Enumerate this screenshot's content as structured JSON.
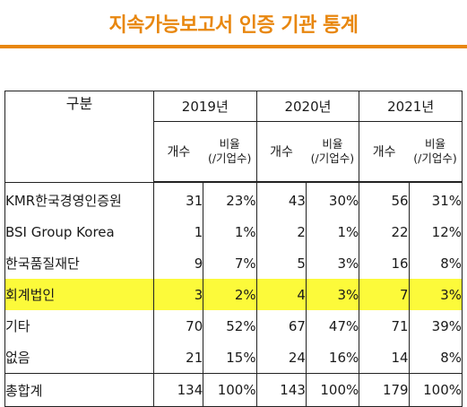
{
  "title": "지속가능보고서 인증 기관 통계",
  "table": {
    "header_label": "구분",
    "years": [
      "2019년",
      "2020년",
      "2021년"
    ],
    "count_label": "개수",
    "rate_label_line1": "비율",
    "rate_label_line2": "(/기업수)",
    "rows": [
      {
        "label": "KMR한국경영인증원",
        "values": [
          "31",
          "23%",
          "43",
          "30%",
          "56",
          "31%"
        ]
      },
      {
        "label": "BSI Group Korea",
        "values": [
          "1",
          "1%",
          "2",
          "1%",
          "22",
          "12%"
        ]
      },
      {
        "label": "한국품질재단",
        "values": [
          "9",
          "7%",
          "5",
          "3%",
          "16",
          "8%"
        ]
      },
      {
        "label": "회계법인",
        "values": [
          "3",
          "2%",
          "4",
          "3%",
          "7",
          "3%"
        ],
        "highlight": true
      },
      {
        "label": "기타",
        "values": [
          "70",
          "52%",
          "67",
          "47%",
          "71",
          "39%"
        ]
      },
      {
        "label": "없음",
        "values": [
          "21",
          "15%",
          "24",
          "16%",
          "14",
          "8%"
        ]
      }
    ],
    "total": {
      "label": "총합계",
      "values": [
        "134",
        "100%",
        "143",
        "100%",
        "179",
        "100%"
      ]
    }
  },
  "colors": {
    "accent": "#e8870f",
    "highlight": "#fcfa3a"
  }
}
